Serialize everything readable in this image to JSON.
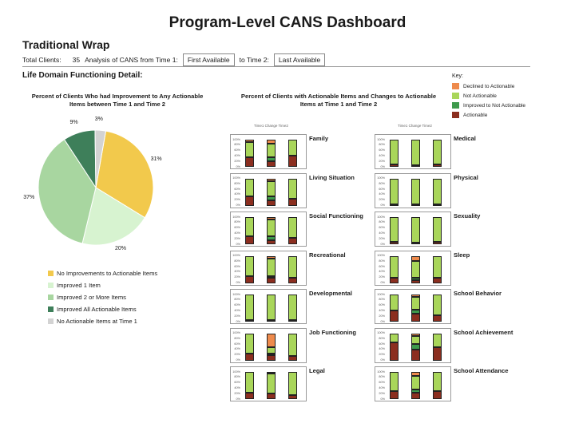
{
  "header": {
    "title": "Program-Level CANS Dashboard",
    "program": "Traditional Wrap",
    "total_clients_label": "Total Clients:",
    "total_clients_value": "35",
    "analysis_label": "Analysis of CANS from Time 1:",
    "time1_value": "First Available",
    "to_label": "to Time 2:",
    "time2_value": "Last Available"
  },
  "section_title": "Life Domain Functioning Detail:",
  "pie_title": "Percent of Clients Who had Improvement to Any Actionable Items between Time 1 and Time 2",
  "bar_title": "Percent of Clients with Actionable Items and Changes to Actionable Items at Time 1 and Time 2",
  "bar_col_header": "Time1  Change  Time2",
  "key": {
    "title": "Key:",
    "items": [
      {
        "label": "Declined to Actionable",
        "color": "#ee8a4c"
      },
      {
        "label": "Not Actionable",
        "color": "#a9d65a"
      },
      {
        "label": "Improved to Not Actionable",
        "color": "#3e9a4c"
      },
      {
        "label": "Actionable",
        "color": "#8b2e1f"
      }
    ]
  },
  "colors": {
    "declined": "#ee8a4c",
    "not_actionable": "#a9d65a",
    "improved": "#3e9a4c",
    "actionable": "#8b2e1f"
  },
  "y_ticks": [
    "100%",
    "80%",
    "60%",
    "40%",
    "20%",
    "0%"
  ],
  "chart_data": [
    {
      "type": "pie",
      "title": "Percent of Clients Who had Improvement to Any Actionable Items between Time 1 and Time 2",
      "slices": [
        {
          "label": "No Improvements to Actionable Items",
          "value": 31,
          "display": "31%",
          "color": "#f2c94c"
        },
        {
          "label": "Improved 1 Item",
          "value": 20,
          "display": "20%",
          "color": "#d7f3d0"
        },
        {
          "label": "Improved 2 or More Items",
          "value": 37,
          "display": "37%",
          "color": "#a8d6a0"
        },
        {
          "label": "Improved All Actionable Items",
          "value": 9,
          "display": "9%",
          "color": "#3e7f5a"
        },
        {
          "label": "No Actionable Items at Time 1",
          "value": 3,
          "display": "3%",
          "color": "#d3d3d3"
        }
      ]
    },
    {
      "type": "bar",
      "stacked": true,
      "title": "Percent of Clients with Actionable Items and Changes to Actionable Items at Time 1 and Time 2",
      "categories": [
        "Time1",
        "Change",
        "Time2"
      ],
      "ylim": [
        0,
        100
      ],
      "segment_order": [
        "actionable",
        "improved",
        "not_actionable",
        "declined"
      ],
      "domains": [
        {
          "name": "Family",
          "bars": [
            [
              35,
              0,
              55,
              10
            ],
            [
              20,
              15,
              50,
              15
            ],
            [
              40,
              0,
              60,
              0
            ]
          ]
        },
        {
          "name": "Living Situation",
          "bars": [
            [
              35,
              0,
              65,
              0
            ],
            [
              20,
              15,
              55,
              10
            ],
            [
              25,
              0,
              75,
              0
            ]
          ]
        },
        {
          "name": "Social Functioning",
          "bars": [
            [
              30,
              0,
              70,
              0
            ],
            [
              15,
              15,
              60,
              10
            ],
            [
              25,
              0,
              75,
              0
            ]
          ]
        },
        {
          "name": "Recreational",
          "bars": [
            [
              25,
              0,
              75,
              0
            ],
            [
              20,
              5,
              65,
              10
            ],
            [
              20,
              0,
              80,
              0
            ]
          ]
        },
        {
          "name": "Developmental",
          "bars": [
            [
              5,
              0,
              95,
              0
            ],
            [
              5,
              0,
              95,
              0
            ],
            [
              5,
              0,
              95,
              0
            ]
          ]
        },
        {
          "name": "Job Functioning",
          "bars": [
            [
              25,
              0,
              75,
              0
            ],
            [
              20,
              5,
              25,
              50
            ],
            [
              15,
              0,
              85,
              0
            ]
          ]
        },
        {
          "name": "Legal",
          "bars": [
            [
              25,
              0,
              75,
              0
            ],
            [
              20,
              0,
              75,
              5
            ],
            [
              15,
              0,
              85,
              0
            ]
          ]
        },
        {
          "name": "Medical",
          "bars": [
            [
              10,
              0,
              90,
              0
            ],
            [
              5,
              0,
              95,
              0
            ],
            [
              10,
              0,
              90,
              0
            ]
          ]
        },
        {
          "name": "Physical",
          "bars": [
            [
              5,
              0,
              95,
              0
            ],
            [
              5,
              0,
              95,
              0
            ],
            [
              5,
              0,
              95,
              0
            ]
          ]
        },
        {
          "name": "Sexuality",
          "bars": [
            [
              10,
              0,
              90,
              0
            ],
            [
              5,
              0,
              95,
              0
            ],
            [
              10,
              0,
              90,
              0
            ]
          ]
        },
        {
          "name": "Sleep",
          "bars": [
            [
              20,
              0,
              80,
              0
            ],
            [
              10,
              10,
              60,
              20
            ],
            [
              20,
              0,
              80,
              0
            ]
          ]
        },
        {
          "name": "School Behavior",
          "bars": [
            [
              40,
              0,
              60,
              0
            ],
            [
              30,
              15,
              45,
              10
            ],
            [
              25,
              0,
              75,
              0
            ]
          ]
        },
        {
          "name": "School Achievement",
          "bars": [
            [
              65,
              0,
              35,
              0
            ],
            [
              40,
              20,
              30,
              10
            ],
            [
              50,
              0,
              50,
              0
            ]
          ]
        },
        {
          "name": "School Attendance",
          "bars": [
            [
              30,
              0,
              70,
              0
            ],
            [
              25,
              10,
              50,
              15
            ],
            [
              30,
              0,
              70,
              0
            ]
          ]
        }
      ]
    }
  ]
}
